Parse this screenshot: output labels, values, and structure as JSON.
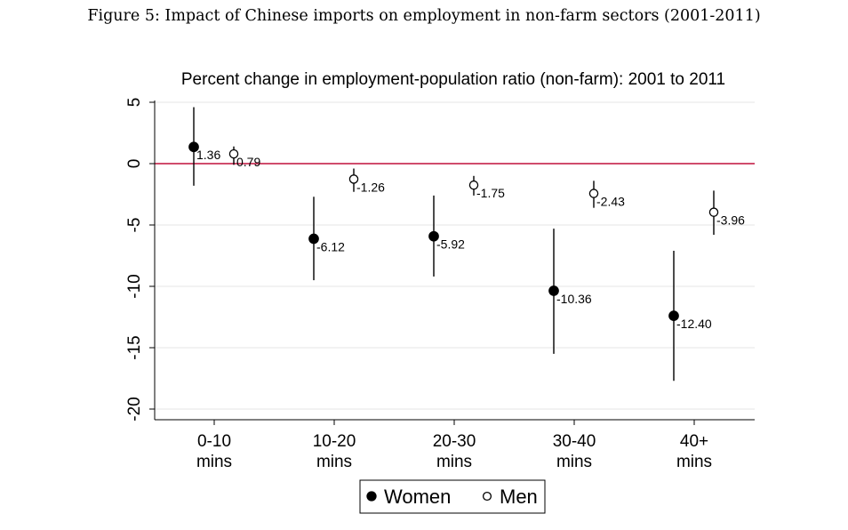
{
  "figure_caption": "Figure 5: Impact of Chinese imports on employment in non-farm sectors (2001-2011)",
  "chart_data": {
    "type": "scatter",
    "title": "Percent change in employment-population ratio (non-farm): 2001 to 2011",
    "xlabel": "",
    "ylabel": "",
    "categories": [
      "0-10 mins",
      "10-20 mins",
      "20-30 mins",
      "30-40 mins",
      "40+ mins"
    ],
    "category_lines": [
      [
        "0-10",
        "mins"
      ],
      [
        "10-20",
        "mins"
      ],
      [
        "20-30",
        "mins"
      ],
      [
        "30-40",
        "mins"
      ],
      [
        "40+",
        "mins"
      ]
    ],
    "ylim": [
      -20,
      5
    ],
    "yticks": [
      5,
      0,
      -5,
      -10,
      -15,
      -20
    ],
    "ytick_labels": [
      "5",
      "0",
      "-5",
      "-10",
      "-15",
      "-20"
    ],
    "reference_line": {
      "y": 0,
      "color": "#c0103c"
    },
    "grid": true,
    "legend_position": "bottom",
    "series": [
      {
        "name": "Women",
        "marker": "filled-circle",
        "values": [
          1.36,
          -6.12,
          -5.92,
          -10.36,
          -12.4
        ],
        "labels": [
          "1.36",
          "-6.12",
          "-5.92",
          "-10.36",
          "-12.40"
        ],
        "ci_low": [
          -1.8,
          -9.5,
          -9.2,
          -15.5,
          -17.7
        ],
        "ci_high": [
          4.6,
          -2.7,
          -2.6,
          -5.3,
          -7.1
        ]
      },
      {
        "name": "Men",
        "marker": "hollow-circle",
        "values": [
          0.79,
          -1.26,
          -1.75,
          -2.43,
          -3.96
        ],
        "labels": [
          "0.79",
          "-1.26",
          "-1.75",
          "-2.43",
          "-3.96"
        ],
        "ci_low": [
          -0.1,
          -2.3,
          -2.6,
          -3.6,
          -5.8
        ],
        "ci_high": [
          1.4,
          -0.4,
          -1.0,
          -1.4,
          -2.2
        ]
      }
    ]
  }
}
